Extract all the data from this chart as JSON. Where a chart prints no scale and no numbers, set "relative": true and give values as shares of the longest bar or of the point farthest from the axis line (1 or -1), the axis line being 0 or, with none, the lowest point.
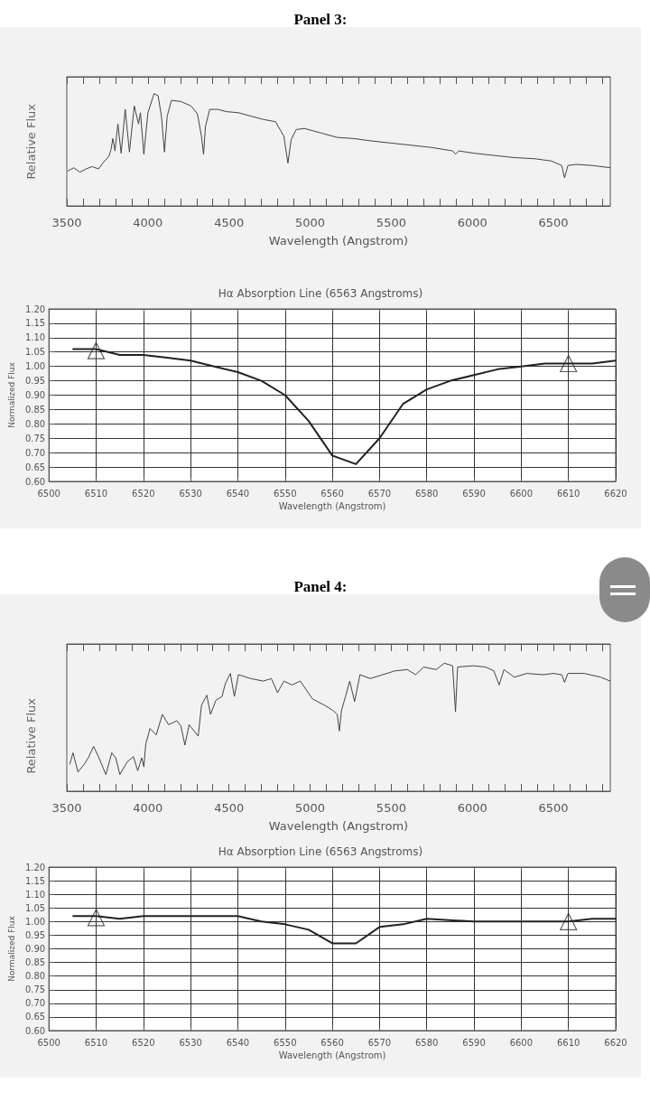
{
  "chart_data": [
    {
      "type": "line",
      "title": "Panel 3:",
      "xlabel": "Wavelength (Angstrom)",
      "ylabel": "Relative Flux",
      "relative": true,
      "color": "#444444",
      "xlim": [
        3500,
        6850
      ],
      "xticks": [
        3500,
        {
          "value": 3600,
          "label": null
        },
        {
          "value": 3700,
          "label": null
        },
        {
          "value": 3800,
          "label": null
        },
        {
          "value": 3900,
          "label": null
        },
        4000,
        {
          "value": 4100,
          "label": null
        },
        {
          "value": 4200,
          "label": null
        },
        {
          "value": 4300,
          "label": null
        },
        {
          "value": 4400,
          "label": null
        },
        4500,
        {
          "value": 4600,
          "label": null
        },
        {
          "value": 4700,
          "label": null
        },
        {
          "value": 4800,
          "label": null
        },
        {
          "value": 4900,
          "label": null
        },
        5000,
        {
          "value": 5100,
          "label": null
        },
        {
          "value": 5200,
          "label": null
        },
        {
          "value": 5300,
          "label": null
        },
        {
          "value": 5400,
          "label": null
        },
        5500,
        {
          "value": 5600,
          "label": null
        },
        {
          "value": 5700,
          "label": null
        },
        {
          "value": 5800,
          "label": null
        },
        {
          "value": 5900,
          "label": null
        },
        6000,
        {
          "value": 6100,
          "label": null
        },
        {
          "value": 6200,
          "label": null
        },
        {
          "value": 6300,
          "label": null
        },
        {
          "value": 6400,
          "label": null
        },
        6500,
        {
          "value": 6600,
          "label": null
        },
        {
          "value": 6700,
          "label": null
        },
        {
          "value": 6800,
          "label": null
        }
      ],
      "x": [
        3505,
        3543,
        3581,
        3619,
        3657,
        3695,
        3733,
        3759,
        3772,
        3784,
        3797,
        3815,
        3835,
        3860,
        3886,
        3916,
        3942,
        3954,
        3975,
        4000,
        4038,
        4063,
        4084,
        4102,
        4119,
        4145,
        4203,
        4266,
        4305,
        4330,
        4343,
        4355,
        4381,
        4431,
        4482,
        4558,
        4634,
        4711,
        4787,
        4838,
        4863,
        4883,
        4914,
        4964,
        5066,
        5167,
        5269,
        5371,
        5497,
        5624,
        5751,
        5878,
        5896,
        5916,
        6005,
        6132,
        6259,
        6386,
        6487,
        6551,
        6568,
        6589,
        6639,
        6741,
        6850
      ],
      "values": [
        0.31,
        0.34,
        0.3,
        0.33,
        0.35,
        0.33,
        0.4,
        0.44,
        0.5,
        0.6,
        0.49,
        0.73,
        0.47,
        0.86,
        0.48,
        0.89,
        0.73,
        0.83,
        0.46,
        0.83,
        1.0,
        0.98,
        0.79,
        0.48,
        0.8,
        0.94,
        0.93,
        0.89,
        0.82,
        0.62,
        0.46,
        0.71,
        0.86,
        0.86,
        0.84,
        0.83,
        0.8,
        0.77,
        0.75,
        0.62,
        0.38,
        0.59,
        0.68,
        0.69,
        0.65,
        0.61,
        0.6,
        0.58,
        0.56,
        0.54,
        0.52,
        0.49,
        0.46,
        0.49,
        0.47,
        0.45,
        0.43,
        0.42,
        0.4,
        0.36,
        0.25,
        0.36,
        0.37,
        0.36,
        0.34
      ]
    },
    {
      "type": "line",
      "title": "Hα Absorption Line (6563 Angstroms)",
      "xlabel": "Wavelength (Angstrom)",
      "ylabel": "Normalized Flux",
      "grid": true,
      "xlim": [
        6500,
        6620
      ],
      "ylim": [
        0.6,
        1.2
      ],
      "xticks": [
        6500,
        6510,
        6520,
        6530,
        6540,
        6550,
        6560,
        6570,
        6580,
        6590,
        6600,
        6610,
        6620
      ],
      "yticks": [
        {
          "value": 0.6,
          "label": "0.60"
        },
        0.65,
        {
          "value": 0.7,
          "label": "0.70"
        },
        0.75,
        {
          "value": 0.8,
          "label": "0.80"
        },
        0.85,
        {
          "value": 0.9,
          "label": "0.90"
        },
        0.95,
        {
          "value": 1.0,
          "label": "1.00"
        },
        1.05,
        {
          "value": 1.1,
          "label": "1.10"
        },
        1.15,
        {
          "value": 1.2,
          "label": "1.20"
        }
      ],
      "series": [
        {
          "type": "line",
          "marker": "none",
          "color": "#222222",
          "x": [
            6505,
            6510,
            6515,
            6520,
            6525,
            6530,
            6535,
            6540,
            6545,
            6550,
            6555,
            6560,
            6565,
            6570,
            6575,
            6580,
            6585,
            6590,
            6595,
            6600,
            6605,
            6610,
            6615,
            6620
          ],
          "values": [
            1.06,
            1.06,
            1.04,
            1.04,
            1.03,
            1.02,
            1.0,
            0.98,
            0.95,
            0.9,
            0.81,
            0.69,
            0.66,
            0.75,
            0.87,
            0.92,
            0.95,
            0.97,
            0.99,
            1.0,
            1.01,
            1.01,
            1.01,
            1.02
          ]
        },
        {
          "type": "scatter",
          "marker": "triangle",
          "color": "#333333",
          "x": [
            6510,
            6610
          ],
          "values": [
            1.055,
            1.01
          ]
        }
      ]
    },
    {
      "type": "line",
      "title": "Panel 4:",
      "xlabel": "Wavelength (Angstrom)",
      "ylabel": "Relative Flux",
      "relative": true,
      "color": "#444444",
      "xlim": [
        3500,
        6850
      ],
      "xticks": [
        3500,
        {
          "value": 3600,
          "label": null
        },
        {
          "value": 3700,
          "label": null
        },
        {
          "value": 3800,
          "label": null
        },
        {
          "value": 3900,
          "label": null
        },
        4000,
        {
          "value": 4100,
          "label": null
        },
        {
          "value": 4200,
          "label": null
        },
        {
          "value": 4300,
          "label": null
        },
        {
          "value": 4400,
          "label": null
        },
        4500,
        {
          "value": 4600,
          "label": null
        },
        {
          "value": 4700,
          "label": null
        },
        {
          "value": 4800,
          "label": null
        },
        {
          "value": 4900,
          "label": null
        },
        5000,
        {
          "value": 5100,
          "label": null
        },
        {
          "value": 5200,
          "label": null
        },
        {
          "value": 5300,
          "label": null
        },
        {
          "value": 5400,
          "label": null
        },
        5500,
        {
          "value": 5600,
          "label": null
        },
        {
          "value": 5700,
          "label": null
        },
        {
          "value": 5800,
          "label": null
        },
        {
          "value": 5900,
          "label": null
        },
        6000,
        {
          "value": 6100,
          "label": null
        },
        {
          "value": 6200,
          "label": null
        },
        {
          "value": 6300,
          "label": null
        },
        {
          "value": 6400,
          "label": null
        },
        6500,
        {
          "value": 6600,
          "label": null
        },
        {
          "value": 6700,
          "label": null
        },
        {
          "value": 6800,
          "label": null
        }
      ],
      "x": [
        3518,
        3538,
        3569,
        3607,
        3632,
        3665,
        3695,
        3741,
        3777,
        3802,
        3827,
        3873,
        3911,
        3937,
        3962,
        3975,
        3987,
        4013,
        4051,
        4089,
        4127,
        4178,
        4203,
        4228,
        4254,
        4310,
        4330,
        4363,
        4386,
        4419,
        4457,
        4477,
        4508,
        4533,
        4558,
        4634,
        4711,
        4761,
        4799,
        4838,
        4888,
        4939,
        5015,
        5091,
        5142,
        5167,
        5180,
        5193,
        5218,
        5244,
        5274,
        5307,
        5371,
        5447,
        5523,
        5599,
        5650,
        5700,
        5777,
        5827,
        5878,
        5896,
        5909,
        6005,
        6081,
        6132,
        6165,
        6195,
        6259,
        6335,
        6437,
        6500,
        6551,
        6568,
        6589,
        6690,
        6792,
        6850
      ],
      "values": [
        0.21,
        0.3,
        0.15,
        0.21,
        0.26,
        0.35,
        0.27,
        0.13,
        0.3,
        0.26,
        0.13,
        0.23,
        0.27,
        0.16,
        0.26,
        0.19,
        0.37,
        0.49,
        0.44,
        0.6,
        0.52,
        0.55,
        0.51,
        0.36,
        0.52,
        0.43,
        0.67,
        0.75,
        0.6,
        0.71,
        0.74,
        0.84,
        0.92,
        0.74,
        0.91,
        0.88,
        0.86,
        0.88,
        0.77,
        0.86,
        0.83,
        0.86,
        0.72,
        0.67,
        0.63,
        0.6,
        0.47,
        0.63,
        0.74,
        0.86,
        0.7,
        0.91,
        0.88,
        0.91,
        0.94,
        0.95,
        0.91,
        0.97,
        0.95,
        1.0,
        0.98,
        0.62,
        0.97,
        0.98,
        0.97,
        0.94,
        0.83,
        0.95,
        0.89,
        0.92,
        0.91,
        0.92,
        0.91,
        0.85,
        0.92,
        0.92,
        0.89,
        0.86
      ]
    },
    {
      "type": "line",
      "title": "Hα Absorption Line (6563 Angstroms)",
      "xlabel": "Wavelength (Angstrom)",
      "ylabel": "Normalized Flux",
      "grid": true,
      "xlim": [
        6500,
        6620
      ],
      "ylim": [
        0.6,
        1.2
      ],
      "xticks": [
        6500,
        6510,
        6520,
        6530,
        6540,
        6550,
        6560,
        6570,
        6580,
        6590,
        6600,
        6610,
        6620
      ],
      "yticks": [
        {
          "value": 0.6,
          "label": "0.60"
        },
        0.65,
        {
          "value": 0.7,
          "label": "0.70"
        },
        0.75,
        {
          "value": 0.8,
          "label": "0.80"
        },
        0.85,
        {
          "value": 0.9,
          "label": "0.90"
        },
        0.95,
        {
          "value": 1.0,
          "label": "1.00"
        },
        1.05,
        {
          "value": 1.1,
          "label": "1.10"
        },
        1.15,
        {
          "value": 1.2,
          "label": "1.20"
        }
      ],
      "series": [
        {
          "type": "line",
          "marker": "none",
          "color": "#222222",
          "x": [
            6505,
            6510,
            6515,
            6520,
            6525,
            6530,
            6535,
            6540,
            6545,
            6550,
            6555,
            6560,
            6565,
            6570,
            6575,
            6580,
            6590,
            6600,
            6610,
            6615,
            6620
          ],
          "values": [
            1.02,
            1.02,
            1.01,
            1.02,
            1.02,
            1.02,
            1.02,
            1.02,
            1.0,
            0.99,
            0.97,
            0.92,
            0.92,
            0.98,
            0.99,
            1.01,
            1.0,
            1.0,
            1.0,
            1.01,
            1.01
          ]
        },
        {
          "type": "scatter",
          "marker": "triangle",
          "color": "#333333",
          "x": [
            6510,
            6610
          ],
          "values": [
            1.015,
            1.0
          ]
        }
      ]
    }
  ]
}
